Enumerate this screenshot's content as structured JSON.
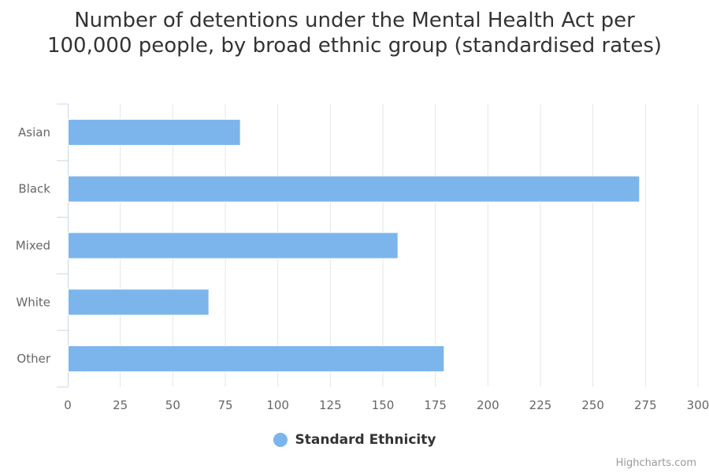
{
  "chart_data": {
    "type": "bar",
    "orientation": "horizontal",
    "title": "Number of detentions under the Mental Health Act per 100,000 people, by broad ethnic group (standardised rates)",
    "categories": [
      "Asian",
      "Black",
      "Mixed",
      "White",
      "Other"
    ],
    "series": [
      {
        "name": "Standard Ethnicity",
        "values": [
          82,
          272,
          157,
          67,
          179
        ],
        "color": "#7cb5ec"
      }
    ],
    "xlim": [
      0,
      300
    ],
    "x_ticks": [
      0,
      25,
      50,
      75,
      100,
      125,
      150,
      175,
      200,
      225,
      250,
      275,
      300
    ],
    "grid": true,
    "legend_position": "bottom-center"
  },
  "credits": "Highcharts.com",
  "colors": {
    "bar": "#7cb5ec",
    "grid": "#e6e6e6",
    "axis_line": "#ccd6eb",
    "label": "#666666"
  }
}
